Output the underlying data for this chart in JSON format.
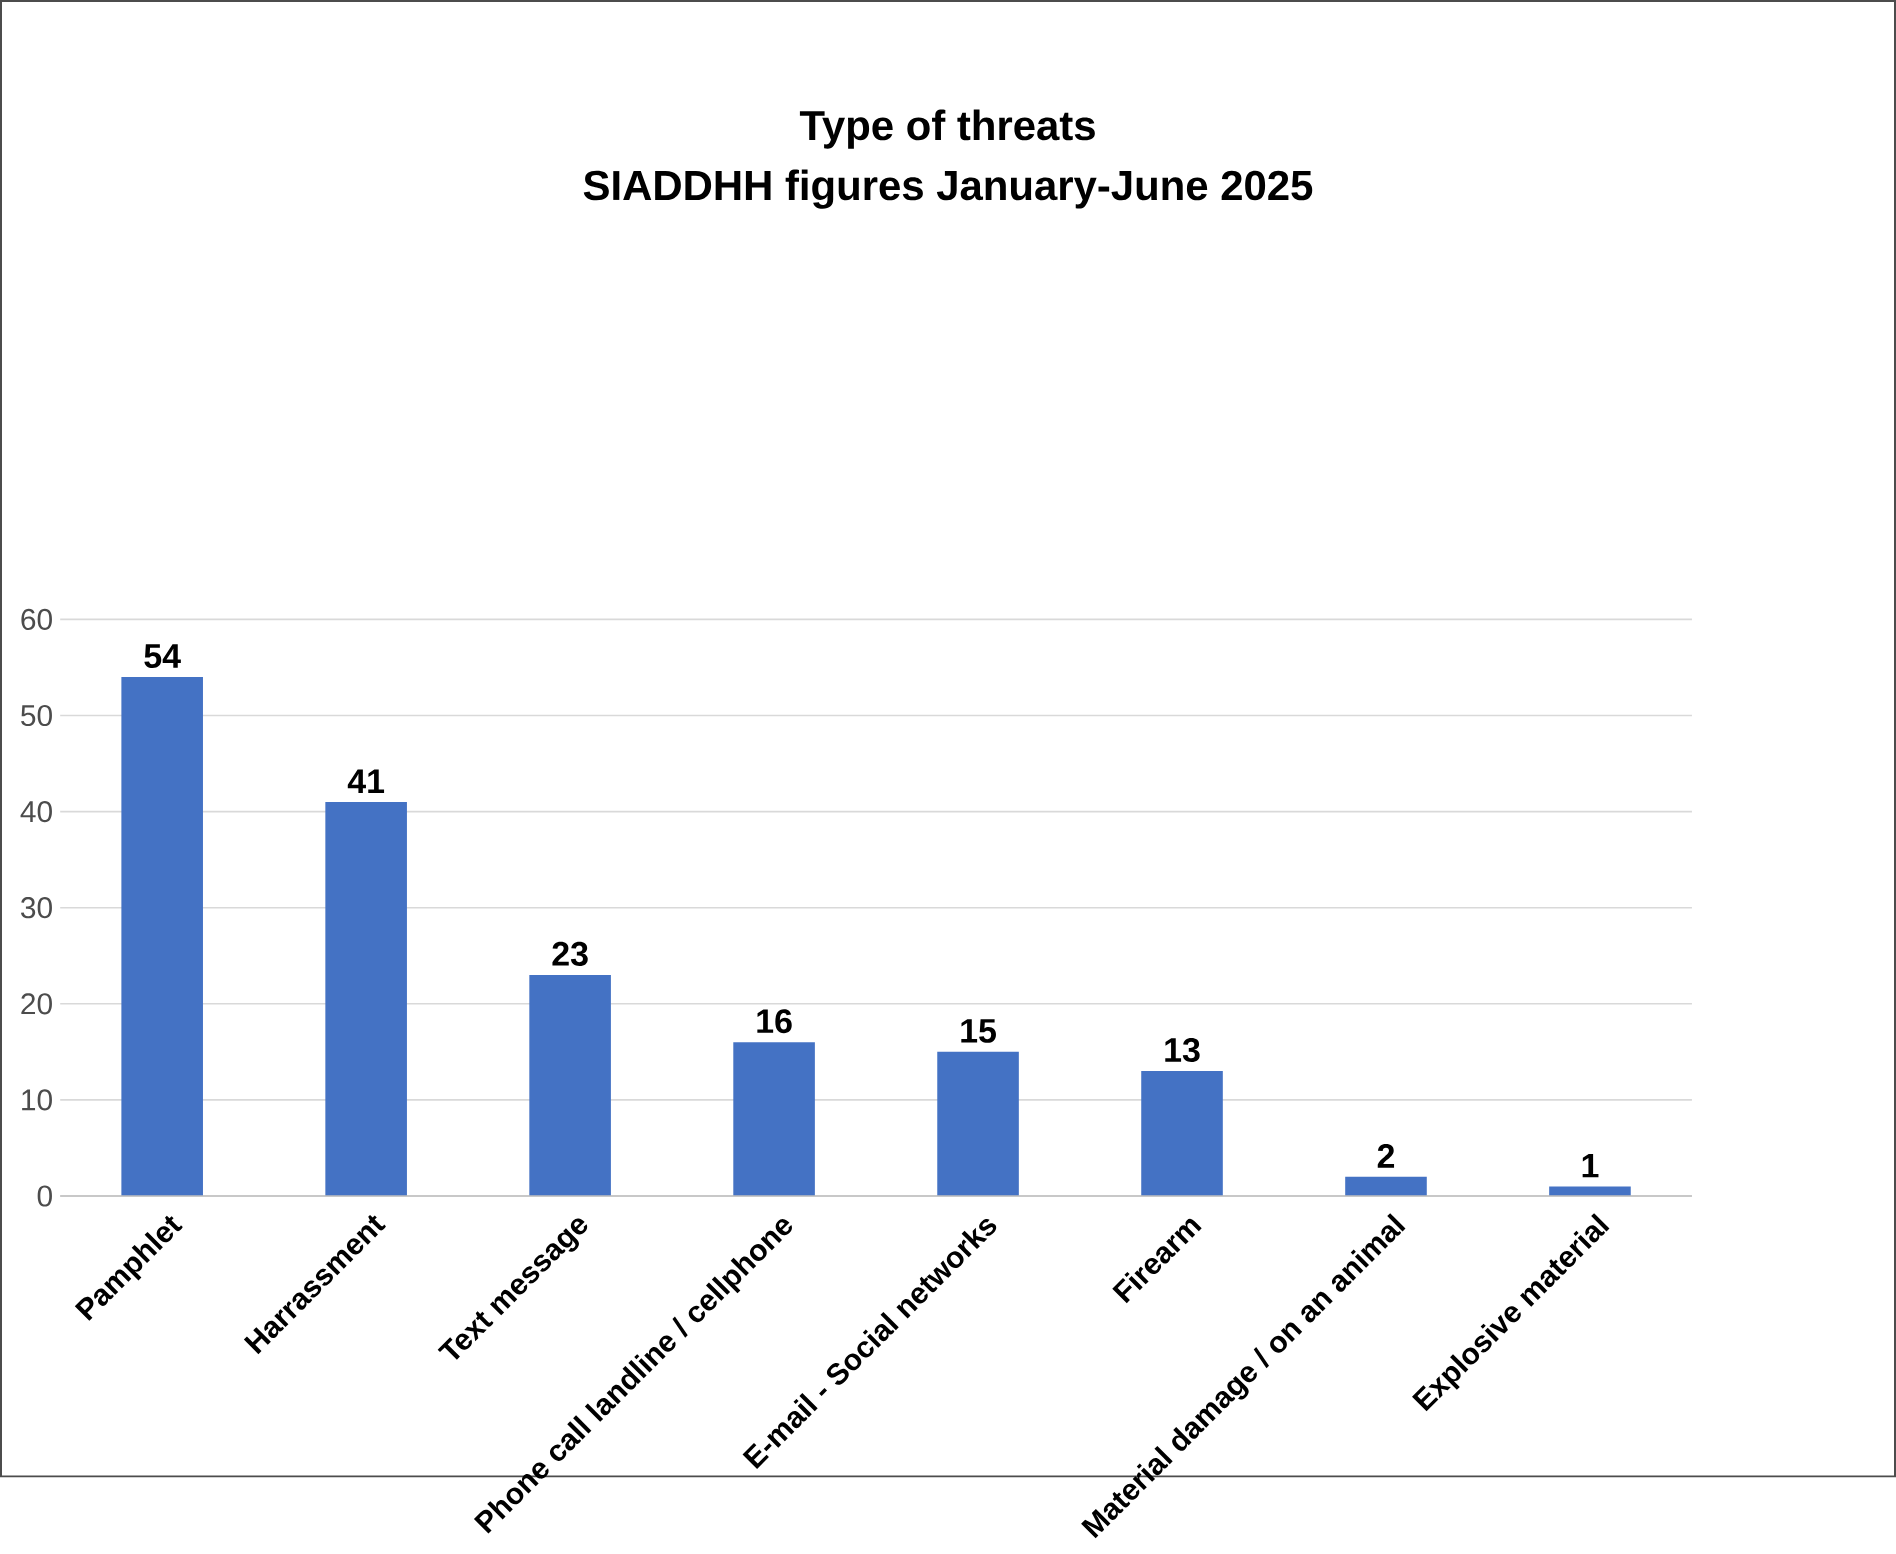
{
  "chart_data": {
    "type": "bar",
    "title": "Type of threats",
    "subtitle": "SIADDHH figures January-June 2025",
    "categories": [
      "Pamphlet",
      "Harrassment",
      "Text message",
      "Phone call landline / cellphone",
      "E-mail - Social networks",
      "Firearm",
      "Material damage / on an animal",
      "Explosive material"
    ],
    "values": [
      54,
      41,
      23,
      16,
      15,
      13,
      2,
      1
    ],
    "color": "#4472c4",
    "ylim": [
      0,
      60
    ],
    "yticks": [
      0,
      10,
      20,
      30,
      40,
      50,
      60
    ],
    "grid": "y",
    "data_labels": true
  }
}
